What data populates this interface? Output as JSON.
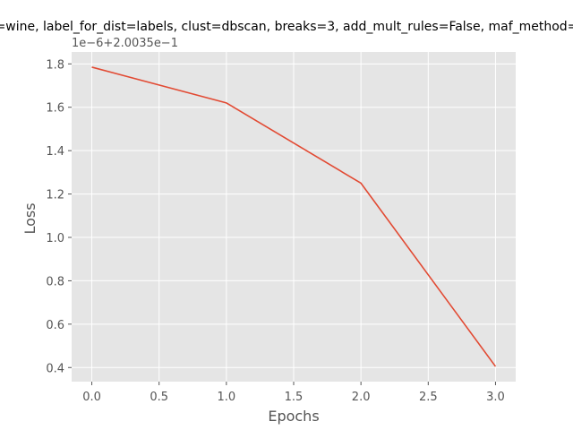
{
  "chart_data": {
    "type": "line",
    "title": "=wine, label_for_dist=labels, clust=dbscan, breaks=3, add_mult_rules=False, maf_method=",
    "xlabel": "Epochs",
    "ylabel": "Loss",
    "y_offset_text": "1e−6+2.0035e−1",
    "xlim": [
      -0.15,
      3.15
    ],
    "ylim": [
      0.335,
      1.855
    ],
    "x_ticks": [
      0.0,
      0.5,
      1.0,
      1.5,
      2.0,
      2.5,
      3.0
    ],
    "x_tick_labels": [
      "0.0",
      "0.5",
      "1.0",
      "1.5",
      "2.0",
      "2.5",
      "3.0"
    ],
    "y_ticks": [
      0.4,
      0.6,
      0.8,
      1.0,
      1.2,
      1.4,
      1.6,
      1.8
    ],
    "y_tick_labels": [
      "0.4",
      "0.6",
      "0.8",
      "1.0",
      "1.2",
      "1.4",
      "1.6",
      "1.8"
    ],
    "grid": true,
    "style": "ggplot",
    "colors": {
      "line": "#E24A33",
      "background": "#E5E5E5",
      "grid": "#FFFFFF"
    },
    "series": [
      {
        "x": [
          0,
          1,
          2,
          3
        ],
        "y": [
          1.785,
          1.62,
          1.25,
          0.405
        ]
      }
    ]
  }
}
